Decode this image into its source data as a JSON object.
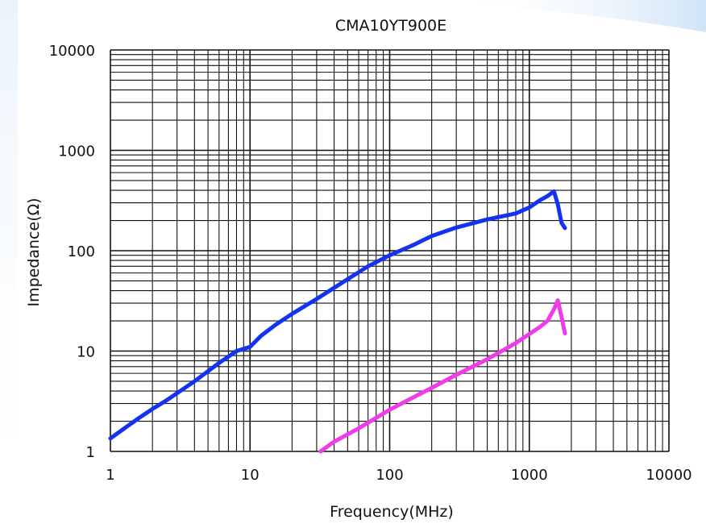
{
  "chart_data": {
    "type": "line",
    "title": "CMA10YT900E",
    "xlabel": "Frequency(MHz)",
    "ylabel": "Impedance(Ω)",
    "x_scale": "log",
    "y_scale": "log",
    "xlim": [
      1,
      10000
    ],
    "ylim": [
      1,
      10000
    ],
    "x_ticks": [
      "1",
      "10",
      "100",
      "1000",
      "10000"
    ],
    "y_ticks": [
      "1",
      "10",
      "100",
      "1000",
      "10000"
    ],
    "grid": true,
    "legend": "none",
    "series": [
      {
        "color": "#1433f0",
        "x": [
          1,
          1.3,
          1.6,
          2,
          2.5,
          3,
          4,
          5,
          6,
          8,
          10,
          12,
          15,
          20,
          30,
          50,
          70,
          100,
          150,
          200,
          300,
          500,
          800,
          1000,
          1200,
          1350,
          1500,
          1600,
          1700,
          1800
        ],
        "y": [
          1.35,
          1.75,
          2.15,
          2.65,
          3.2,
          3.8,
          5.0,
          6.3,
          7.6,
          10.0,
          11.0,
          14.2,
          18.0,
          23.5,
          33.0,
          52.0,
          70.0,
          90.0,
          115.0,
          140.0,
          170.0,
          205.0,
          235.0,
          270.0,
          320.0,
          350.0,
          390.0,
          290.0,
          190.0,
          168.0
        ]
      },
      {
        "color": "#f03ce8",
        "x": [
          32,
          40,
          60,
          100,
          150,
          200,
          300,
          500,
          800,
          1000,
          1200,
          1350,
          1500,
          1600,
          1700,
          1800
        ],
        "y": [
          1.0,
          1.25,
          1.7,
          2.6,
          3.5,
          4.3,
          5.8,
          8.3,
          12.0,
          14.8,
          17.5,
          20.0,
          26.0,
          32.0,
          22.0,
          15.0
        ]
      }
    ]
  },
  "colors": {
    "grid": "#111111",
    "background_accent": "#cfe4f7"
  }
}
